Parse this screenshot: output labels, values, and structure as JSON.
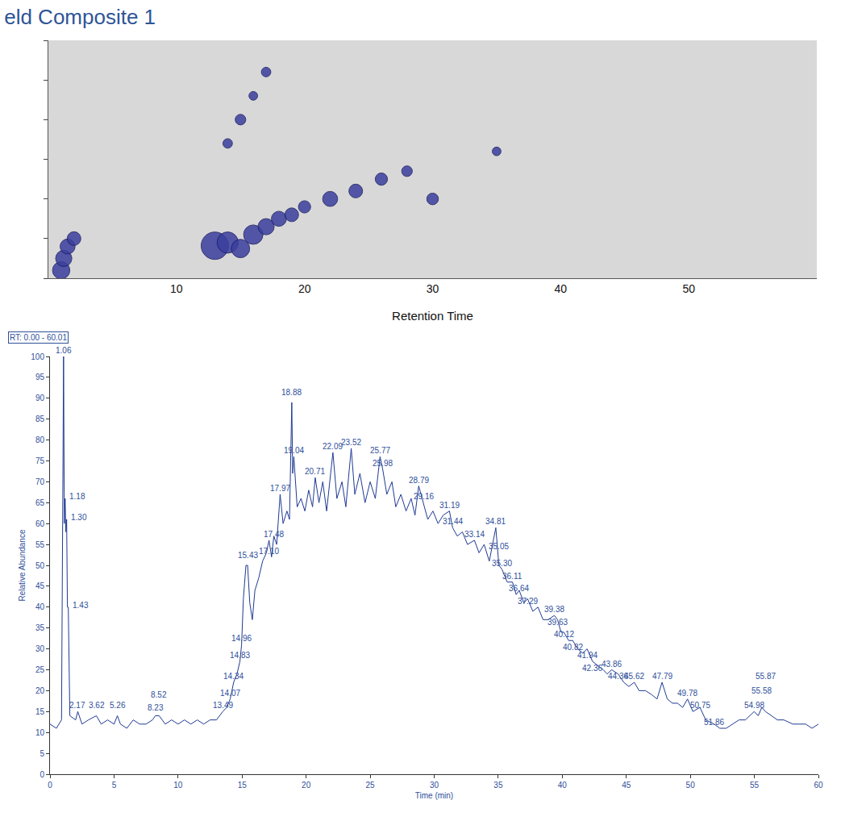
{
  "chart_data": [
    {
      "type": "bubble",
      "title": "eld Composite 1",
      "x_label": "Retention Time",
      "x": [
        1,
        1.2,
        1.5,
        2,
        13,
        14,
        15,
        16,
        17,
        18,
        19,
        20,
        22,
        24,
        26,
        28,
        30,
        35,
        14,
        15,
        16,
        17
      ],
      "values": [
        120,
        150,
        180,
        200,
        182,
        190,
        175,
        210,
        230,
        250,
        260,
        280,
        300,
        320,
        350,
        370,
        300,
        420,
        440,
        500,
        560,
        620
      ],
      "sizes": [
        40,
        35,
        30,
        25,
        100,
        60,
        45,
        50,
        35,
        30,
        25,
        20,
        30,
        25,
        20,
        15,
        18,
        10,
        12,
        15,
        10,
        12
      ],
      "color": "#3b3f9e",
      "xlim": [
        0,
        60
      ],
      "xticks": [
        10,
        20,
        30,
        40,
        50
      ],
      "ylim": [
        100,
        700
      ],
      "yticks": [
        100,
        200,
        300,
        400,
        500,
        600,
        700
      ],
      "tick_labels": "x",
      "grid": false
    },
    {
      "type": "line",
      "x_label": "Time (min)",
      "y_label": "Relative Abundance",
      "range_label": "RT: 0.00 - 60.01",
      "color": "#1f3a93",
      "grid": false,
      "x": [
        0.0,
        0.5,
        0.9,
        1.06,
        1.12,
        1.18,
        1.24,
        1.3,
        1.36,
        1.43,
        1.55,
        2.0,
        2.17,
        2.5,
        3.0,
        3.62,
        4.0,
        4.5,
        5.0,
        5.26,
        5.5,
        6.0,
        6.5,
        7.0,
        7.5,
        8.0,
        8.23,
        8.52,
        9.0,
        9.5,
        10.0,
        10.5,
        11.0,
        11.5,
        12.0,
        12.5,
        13.0,
        13.49,
        13.8,
        14.07,
        14.34,
        14.6,
        14.83,
        14.96,
        15.1,
        15.3,
        15.43,
        15.6,
        15.8,
        16.0,
        16.3,
        16.6,
        16.9,
        17.1,
        17.3,
        17.48,
        17.7,
        17.97,
        18.2,
        18.5,
        18.7,
        18.88,
        18.95,
        19.04,
        19.3,
        19.6,
        19.9,
        20.2,
        20.5,
        20.71,
        21.0,
        21.3,
        21.6,
        22.09,
        22.4,
        22.8,
        23.1,
        23.52,
        23.8,
        24.2,
        24.6,
        25.0,
        25.4,
        25.77,
        25.98,
        26.3,
        26.7,
        27.0,
        27.4,
        27.8,
        28.2,
        28.5,
        28.79,
        29.16,
        29.5,
        29.9,
        30.3,
        30.7,
        31.19,
        31.44,
        31.8,
        32.2,
        32.6,
        33.14,
        33.5,
        33.9,
        34.3,
        34.81,
        35.05,
        35.3,
        35.7,
        36.11,
        36.4,
        36.64,
        37.0,
        37.29,
        37.7,
        38.1,
        38.5,
        38.9,
        39.38,
        39.63,
        39.9,
        40.12,
        40.5,
        40.82,
        41.2,
        41.6,
        41.94,
        42.36,
        42.8,
        43.2,
        43.5,
        43.86,
        44.36,
        44.8,
        45.2,
        45.62,
        46.0,
        46.5,
        47.0,
        47.4,
        47.79,
        48.2,
        48.6,
        49.0,
        49.4,
        49.78,
        50.2,
        50.75,
        51.2,
        51.86,
        52.3,
        52.8,
        53.3,
        53.8,
        54.3,
        54.98,
        55.3,
        55.58,
        55.87,
        56.3,
        56.8,
        57.3,
        58.0,
        58.5,
        59.0,
        59.5,
        60.0
      ],
      "values": [
        12,
        11,
        13,
        100,
        60,
        66,
        58,
        61,
        40,
        40,
        14,
        13,
        15,
        12,
        13,
        14,
        12,
        13,
        12,
        14,
        12,
        11,
        13,
        12,
        12,
        13,
        14,
        14,
        12,
        13,
        12,
        13,
        12,
        13,
        12,
        13,
        13,
        15,
        16,
        18,
        22,
        24,
        27,
        31,
        42,
        50,
        50,
        41,
        37,
        44,
        47,
        51,
        53,
        56,
        52,
        57,
        55,
        67,
        60,
        63,
        61,
        89,
        72,
        76,
        64,
        66,
        63,
        68,
        64,
        71,
        65,
        70,
        63,
        77,
        66,
        70,
        64,
        78,
        67,
        72,
        65,
        70,
        66,
        76,
        73,
        67,
        70,
        64,
        67,
        63,
        66,
        62,
        69,
        65,
        61,
        63,
        60,
        62,
        63,
        59,
        57,
        58,
        55,
        56,
        53,
        55,
        51,
        59,
        50,
        49,
        46,
        46,
        43,
        44,
        41,
        42,
        39,
        40,
        37,
        37,
        38,
        37,
        34,
        34,
        32,
        32,
        30,
        29,
        30,
        27,
        26,
        25,
        24,
        25,
        24,
        22,
        21,
        22,
        20,
        20,
        19,
        18,
        22,
        18,
        17,
        17,
        16,
        18,
        15,
        16,
        13,
        12,
        11,
        11,
        12,
        13,
        13,
        15,
        14,
        16,
        15,
        14,
        13,
        13,
        12,
        12,
        12,
        11,
        12
      ],
      "peak_labels": [
        {
          "x": 1.06,
          "y": 100,
          "text": "1.06"
        },
        {
          "x": 1.18,
          "y": 65,
          "text": "1.18"
        },
        {
          "x": 1.3,
          "y": 60,
          "text": "1.30"
        },
        {
          "x": 1.43,
          "y": 39,
          "text": "1.43"
        },
        {
          "x": 2.17,
          "y": 15,
          "text": "2.17"
        },
        {
          "x": 3.62,
          "y": 15,
          "text": "3.62"
        },
        {
          "x": 5.26,
          "y": 15,
          "text": "5.26"
        },
        {
          "x": 8.23,
          "y": 14.5,
          "text": "8.23"
        },
        {
          "x": 8.52,
          "y": 17.5,
          "text": "8.52"
        },
        {
          "x": 13.49,
          "y": 15,
          "text": "13.49"
        },
        {
          "x": 14.07,
          "y": 18,
          "text": "14.07"
        },
        {
          "x": 14.34,
          "y": 22,
          "text": "14.34"
        },
        {
          "x": 14.83,
          "y": 27,
          "text": "14.83"
        },
        {
          "x": 14.96,
          "y": 31,
          "text": "14.96"
        },
        {
          "x": 15.43,
          "y": 51,
          "text": "15.43"
        },
        {
          "x": 17.1,
          "y": 52,
          "text": "17.10"
        },
        {
          "x": 17.48,
          "y": 56,
          "text": "17.48"
        },
        {
          "x": 17.97,
          "y": 67,
          "text": "17.97"
        },
        {
          "x": 18.88,
          "y": 90,
          "text": "18.88"
        },
        {
          "x": 19.04,
          "y": 76,
          "text": "19.04"
        },
        {
          "x": 20.71,
          "y": 71,
          "text": "20.71"
        },
        {
          "x": 22.09,
          "y": 77,
          "text": "22.09"
        },
        {
          "x": 23.52,
          "y": 78,
          "text": "23.52"
        },
        {
          "x": 25.77,
          "y": 76,
          "text": "25.77"
        },
        {
          "x": 25.98,
          "y": 73,
          "text": "25.98"
        },
        {
          "x": 28.79,
          "y": 69,
          "text": "28.79"
        },
        {
          "x": 29.16,
          "y": 65,
          "text": "29.16"
        },
        {
          "x": 31.19,
          "y": 63,
          "text": "31.19"
        },
        {
          "x": 31.44,
          "y": 59,
          "text": "31.44"
        },
        {
          "x": 33.14,
          "y": 56,
          "text": "33.14"
        },
        {
          "x": 34.81,
          "y": 59,
          "text": "34.81"
        },
        {
          "x": 35.05,
          "y": 53,
          "text": "35.05"
        },
        {
          "x": 35.3,
          "y": 49,
          "text": "35.30"
        },
        {
          "x": 36.11,
          "y": 46,
          "text": "36.11"
        },
        {
          "x": 36.64,
          "y": 43,
          "text": "36.64"
        },
        {
          "x": 37.29,
          "y": 40,
          "text": "37.29"
        },
        {
          "x": 39.38,
          "y": 38,
          "text": "39.38"
        },
        {
          "x": 39.63,
          "y": 35,
          "text": "39.63"
        },
        {
          "x": 40.12,
          "y": 32,
          "text": "40.12"
        },
        {
          "x": 40.82,
          "y": 29,
          "text": "40.82"
        },
        {
          "x": 41.94,
          "y": 27,
          "text": "41.94"
        },
        {
          "x": 42.36,
          "y": 24,
          "text": "42.36"
        },
        {
          "x": 43.86,
          "y": 25,
          "text": "43.86"
        },
        {
          "x": 44.36,
          "y": 22,
          "text": "44.36"
        },
        {
          "x": 45.62,
          "y": 22,
          "text": "45.62"
        },
        {
          "x": 47.79,
          "y": 22,
          "text": "47.79"
        },
        {
          "x": 49.78,
          "y": 18,
          "text": "49.78"
        },
        {
          "x": 50.75,
          "y": 15,
          "text": "50.75"
        },
        {
          "x": 51.86,
          "y": 11,
          "text": "51.86"
        },
        {
          "x": 54.98,
          "y": 15,
          "text": "54.98"
        },
        {
          "x": 55.58,
          "y": 18.5,
          "text": "55.58"
        },
        {
          "x": 55.87,
          "y": 22,
          "text": "55.87"
        }
      ],
      "xlim": [
        0,
        60
      ],
      "xticks": [
        0,
        5,
        10,
        15,
        20,
        25,
        30,
        35,
        40,
        45,
        50,
        55,
        60
      ],
      "ylim": [
        0,
        100
      ],
      "yticks": [
        0,
        5,
        10,
        15,
        20,
        25,
        30,
        35,
        40,
        45,
        50,
        55,
        60,
        65,
        70,
        75,
        80,
        85,
        90,
        95,
        100
      ]
    }
  ]
}
